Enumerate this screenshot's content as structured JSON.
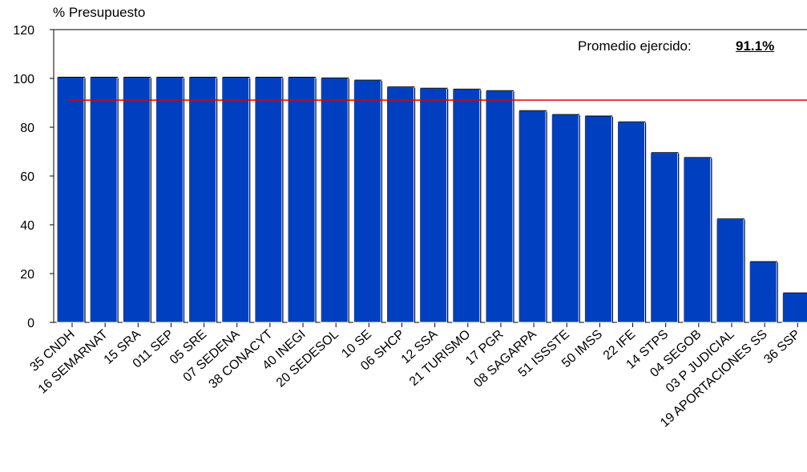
{
  "chart_data": {
    "type": "bar",
    "ylabel": "% Presupuesto",
    "ylim": [
      0,
      120
    ],
    "yticks": [
      0,
      20,
      40,
      60,
      80,
      100,
      120
    ],
    "categories": [
      "35 CNDH",
      "16 SEMARNAT",
      "15 SRA",
      "011 SEP",
      "05 SRE",
      "07 SEDENA",
      "38 CONACYT",
      "40 INEGI",
      "20 SEDESOL",
      "10 SE",
      "06 SHCP",
      "12 SSA",
      "21 TURISMO",
      "17 PGR",
      "08 SAGARPA",
      "51 ISSSTE",
      "50 IMSS",
      "22 IFE",
      "14 STPS",
      "04 SEGOB",
      "03 P JUDICIAL",
      "19 APORTACIONES SS",
      "36 SSP"
    ],
    "values": [
      100.5,
      100.5,
      100.5,
      100.5,
      100.5,
      100.5,
      100.5,
      100.5,
      100.2,
      99.3,
      96.5,
      96.0,
      95.6,
      95.0,
      86.8,
      85.2,
      84.6,
      82.2,
      69.6,
      67.6,
      42.4,
      24.9,
      12.1
    ],
    "average_line": 91.1,
    "average_label": "Promedio ejercido:",
    "average_value": "91.1%",
    "colors": {
      "bar": "#0040c0",
      "average_line": "#e00000"
    },
    "grid": false,
    "legend": "none"
  }
}
